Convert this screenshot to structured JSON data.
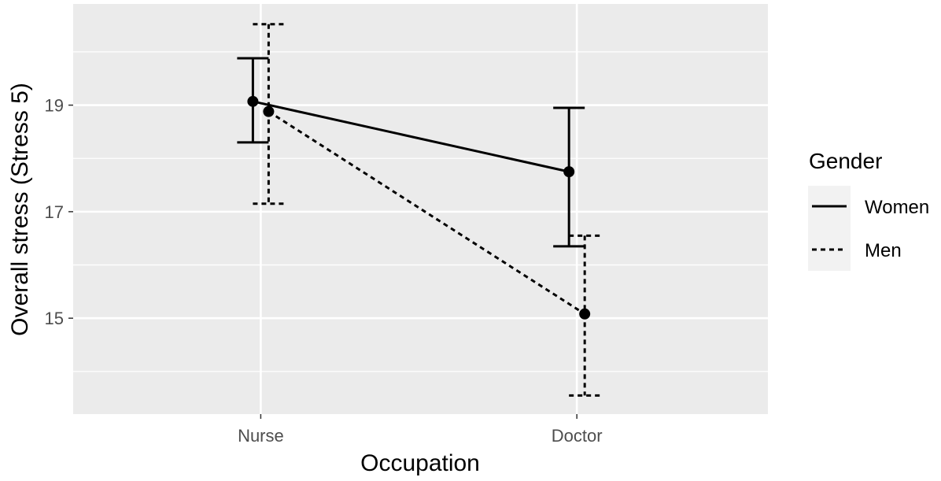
{
  "chart_data": {
    "type": "line",
    "xlabel": "Occupation",
    "ylabel": "Overall stress (Stress 5)",
    "categories": [
      "Nurse",
      "Doctor"
    ],
    "ylim": [
      13.2,
      20.9
    ],
    "y_ticks": [
      15,
      17,
      19
    ],
    "y_tick_labels": [
      "15",
      "17",
      "19"
    ],
    "grid": true,
    "legend": {
      "title": "Gender",
      "position": "right"
    },
    "series": [
      {
        "name": "Women",
        "linetype": "solid",
        "values": [
          19.07,
          17.75
        ],
        "lower": [
          18.3,
          16.35
        ],
        "upper": [
          19.88,
          18.95
        ]
      },
      {
        "name": "Men",
        "linetype": "dashed",
        "values": [
          18.88,
          15.08
        ],
        "lower": [
          17.15,
          13.55
        ],
        "upper": [
          20.52,
          16.55
        ]
      }
    ],
    "colors": {
      "panel": "#ebebeb",
      "grid": "#ffffff",
      "line": "#000000",
      "legend_bg": "#f2f2f2"
    }
  }
}
